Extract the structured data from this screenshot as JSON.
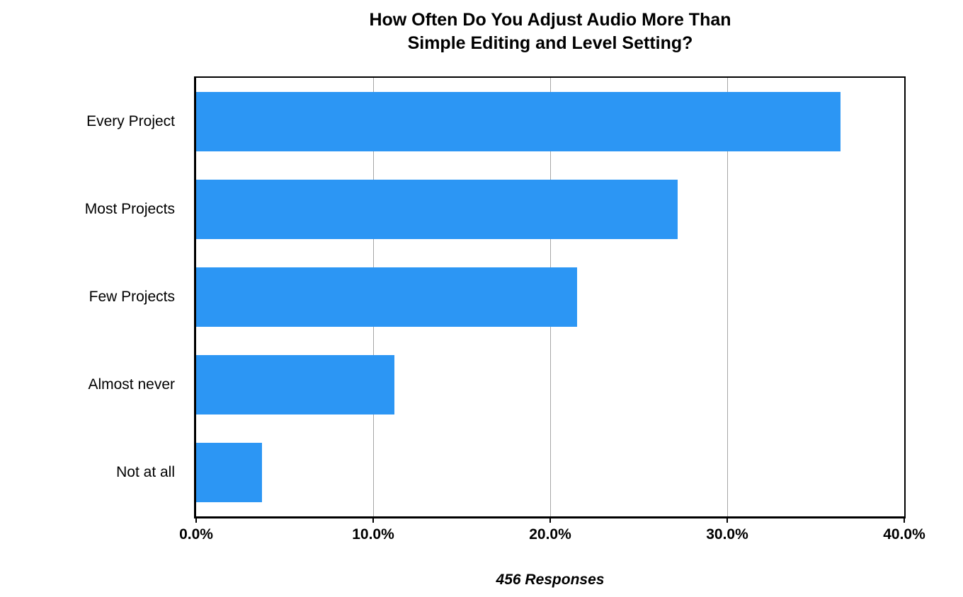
{
  "chart_data": {
    "type": "bar",
    "orientation": "horizontal",
    "title_lines": [
      "How Often Do You Adjust Audio More Than",
      "Simple Editing and Level Setting?"
    ],
    "title": "How Often Do You Adjust Audio More Than Simple Editing and Level Setting?",
    "categories": [
      "Every Project",
      "Most Projects",
      "Few Projects",
      "Almost never",
      "Not at all"
    ],
    "values": [
      36.4,
      27.2,
      21.5,
      11.2,
      3.7
    ],
    "unit": "%",
    "xlabel": "",
    "ylabel": "",
    "xlim": [
      0,
      40
    ],
    "x_ticks": [
      0,
      10,
      20,
      30,
      40
    ],
    "x_tick_labels": [
      "0.0%",
      "10.0%",
      "20.0%",
      "30.0%",
      "40.0%"
    ],
    "grid": true,
    "legend": "none",
    "caption": "456 Responses",
    "bar_color": "#2C96F4",
    "gridline_color": "#A6A6A6",
    "axis_color": "#000000",
    "background_color": "#FFFFFF"
  }
}
